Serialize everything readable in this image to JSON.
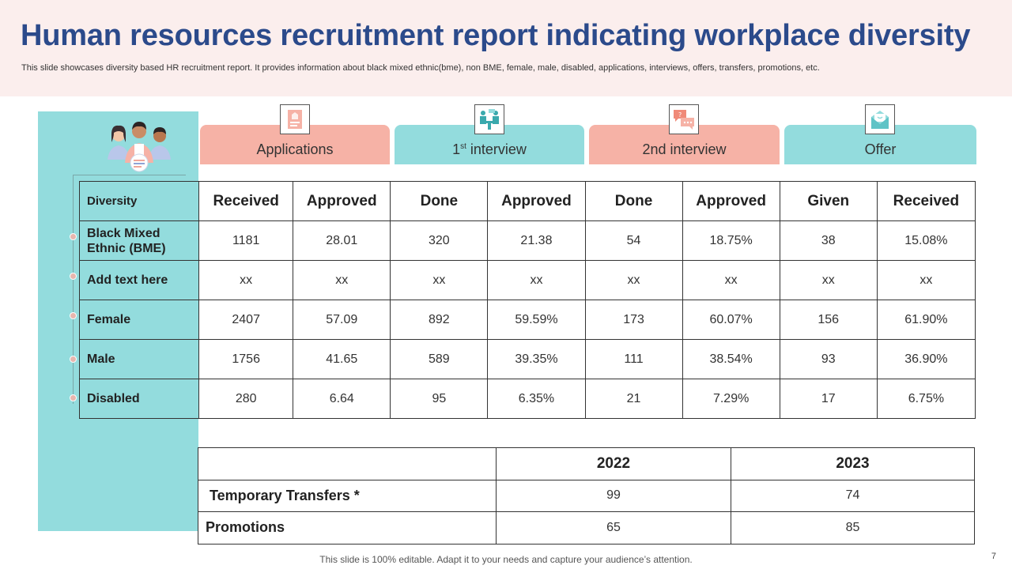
{
  "header": {
    "title": "Human resources recruitment report indicating workplace diversity",
    "subtitle": "This slide showcases diversity based HR recruitment report. It provides information about black mixed ethnic(bme), non BME, female, male, disabled, applications, interviews, offers, transfers, promotions, etc."
  },
  "colors": {
    "title": "#2b4a8b",
    "header_bg": "#fbeeed",
    "teal": "#93dcdd",
    "salmon": "#f6b2a6"
  },
  "tabs": [
    {
      "label": "Applications",
      "icon": "document-icon"
    },
    {
      "label_main": "1",
      "label_sup": "st",
      "label_rest": "interview",
      "icon": "meeting-icon"
    },
    {
      "label": "2nd interview",
      "icon": "chat-icon"
    },
    {
      "label": "Offer",
      "icon": "envelope-icon"
    }
  ],
  "table": {
    "headers": [
      "Diversity",
      "Received",
      "Approved",
      "Done",
      "Approved",
      "Done",
      "Approved",
      "Given",
      "Received"
    ],
    "rows": [
      {
        "label": "Black Mixed Ethnic (BME)",
        "values": [
          "1181",
          "28.01",
          "320",
          "21.38",
          "54",
          "18.75%",
          "38",
          "15.08%"
        ]
      },
      {
        "label": "Add text here",
        "values": [
          "xx",
          "xx",
          "xx",
          "xx",
          "xx",
          "xx",
          "xx",
          "xx"
        ]
      },
      {
        "label": "Female",
        "values": [
          "2407",
          "57.09",
          "892",
          "59.59%",
          "173",
          "60.07%",
          "156",
          "61.90%"
        ]
      },
      {
        "label": "Male",
        "values": [
          "1756",
          "41.65",
          "589",
          "39.35%",
          "111",
          "38.54%",
          "93",
          "36.90%"
        ]
      },
      {
        "label": "Disabled",
        "values": [
          "280",
          "6.64",
          "95",
          "6.35%",
          "21",
          "7.29%",
          "17",
          "6.75%"
        ]
      }
    ]
  },
  "summary": {
    "years": [
      "2022",
      "2023"
    ],
    "rows": [
      {
        "label": "Temporary Transfers *",
        "values": [
          "99",
          "74"
        ]
      },
      {
        "label": "Promotions",
        "values": [
          "65",
          "85"
        ]
      }
    ]
  },
  "footer": "This slide is 100% editable. Adapt it to your needs and capture your audience’s attention.",
  "page_number": "7"
}
